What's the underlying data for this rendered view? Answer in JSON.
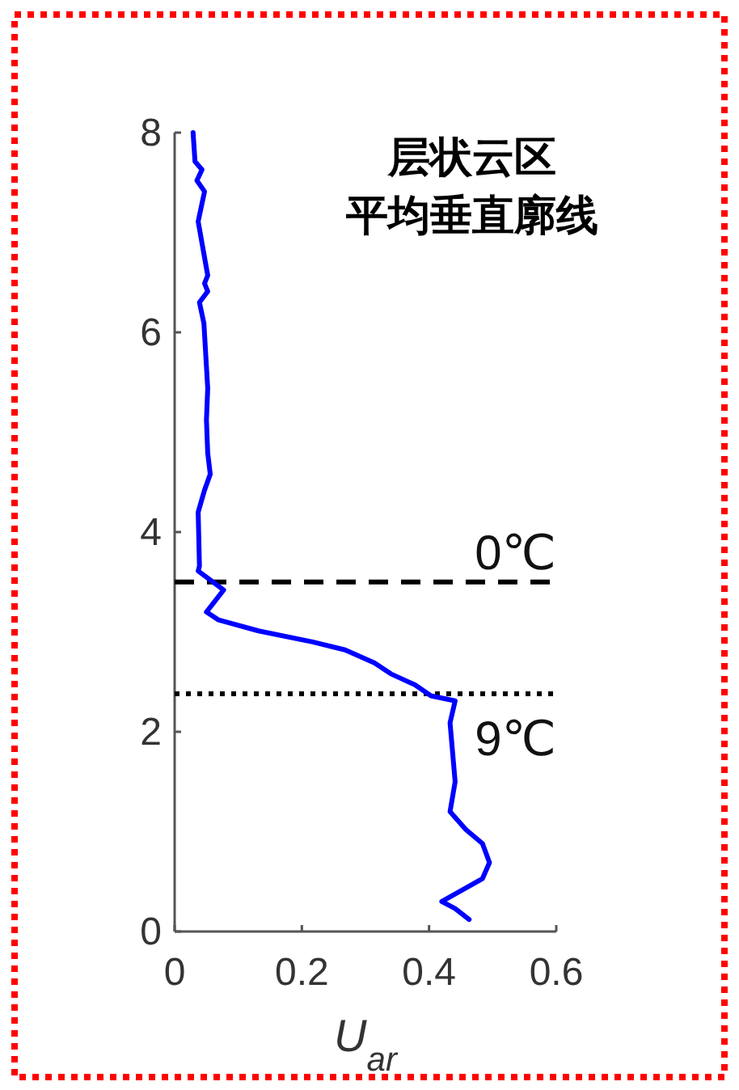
{
  "chart_data": {
    "type": "line",
    "title": "层状云区",
    "subtitle": "平均垂直廓线",
    "xlabel": "U$_{ar}$",
    "series": [
      {
        "color": "#0000ff",
        "line_style": "solid",
        "x": [
          0.029,
          0.032,
          0.043,
          0.035,
          0.047,
          0.037,
          0.052,
          0.047,
          0.052,
          0.039,
          0.046,
          0.052,
          0.05,
          0.052,
          0.056,
          0.047,
          0.037,
          0.039,
          0.037,
          0.077,
          0.05,
          0.069,
          0.132,
          0.217,
          0.268,
          0.314,
          0.34,
          0.378,
          0.403,
          0.441,
          0.433,
          0.441,
          0.433,
          0.458,
          0.484,
          0.495,
          0.484,
          0.42,
          0.441,
          0.463
        ],
        "values": [
          8.0,
          7.71,
          7.63,
          7.52,
          7.41,
          7.11,
          6.57,
          6.49,
          6.41,
          6.3,
          6.09,
          5.44,
          5.12,
          4.79,
          4.58,
          4.42,
          4.2,
          3.66,
          3.61,
          3.42,
          3.2,
          3.12,
          3.01,
          2.9,
          2.82,
          2.69,
          2.58,
          2.47,
          2.36,
          2.31,
          2.09,
          1.5,
          1.2,
          1.02,
          0.88,
          0.69,
          0.53,
          0.3,
          0.23,
          0.12
        ]
      }
    ],
    "xlim": [
      0,
      0.6
    ],
    "ylim": [
      0,
      8
    ],
    "xticks": [
      0,
      0.2,
      0.4,
      0.6
    ],
    "yticks": [
      0,
      2,
      4,
      6,
      8
    ],
    "ref_lines": [
      {
        "axis": "y",
        "value": 3.5,
        "label": "0℃",
        "color": "#000000",
        "line_style": "dashed"
      },
      {
        "axis": "y",
        "value": 2.38,
        "label": "9℃",
        "color": "#000000",
        "line_style": "dotted"
      }
    ],
    "grid": false
  }
}
